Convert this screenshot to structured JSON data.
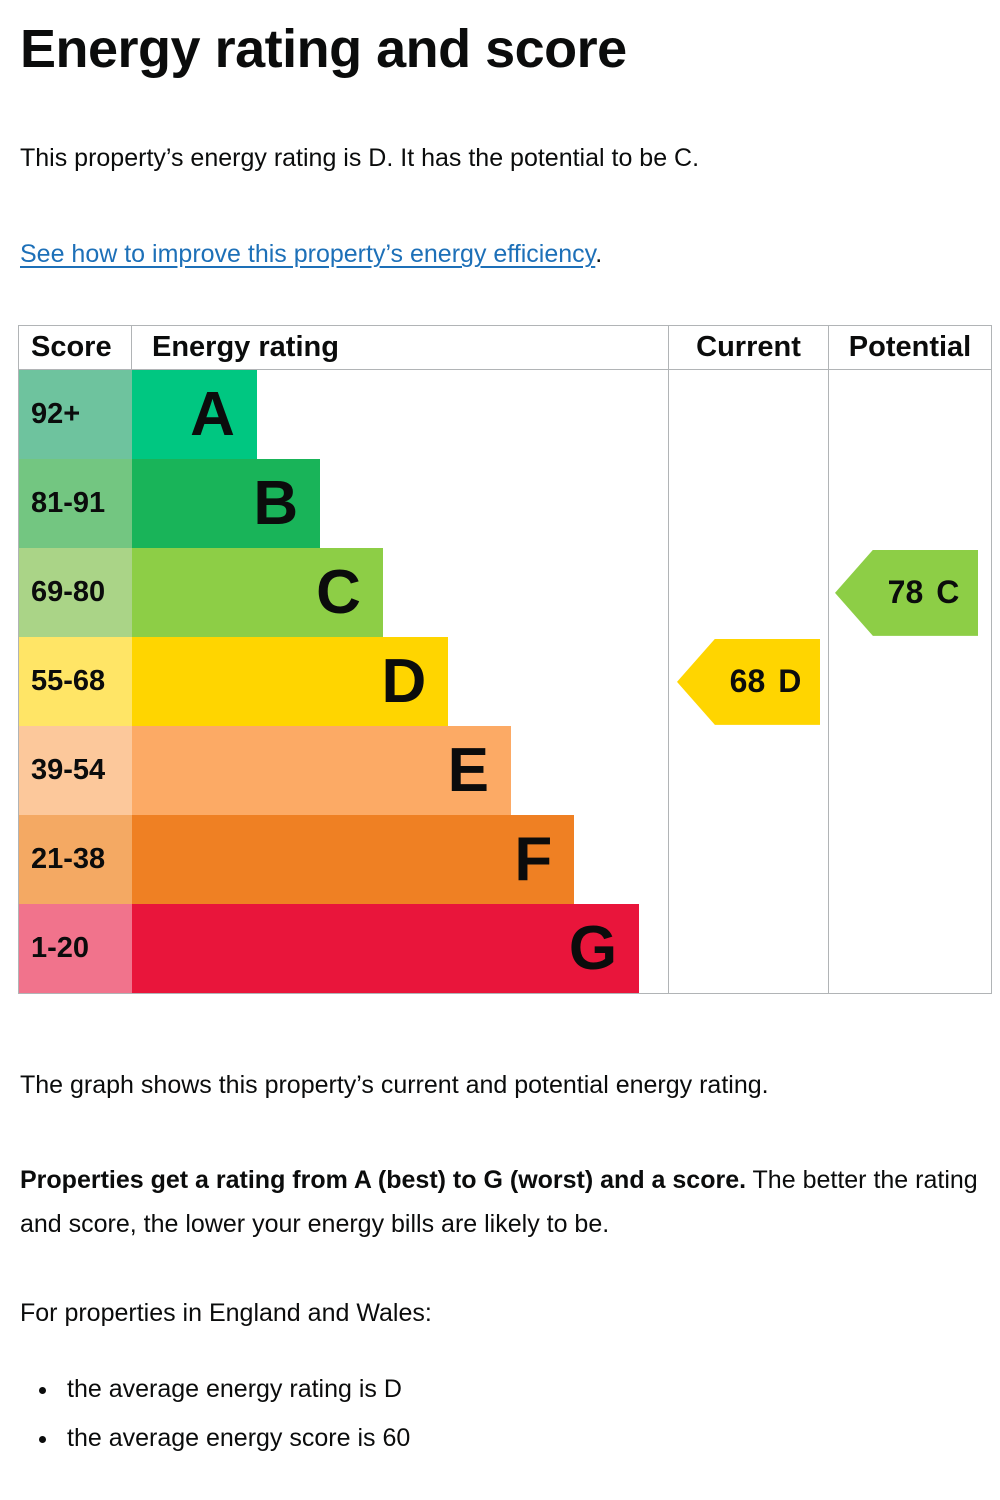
{
  "page": {
    "title": "Energy rating and score",
    "intro": "This property’s energy rating is D. It has the potential to be C.",
    "link_text": "See how to improve this property’s energy efficiency",
    "link_suffix": ".",
    "graph_caption": "The graph shows this property’s current and potential energy rating.",
    "rating_explain_bold": "Properties get a rating from A (best) to G (worst) and a score.",
    "rating_explain_rest": " The better the rating and score, the lower your energy bills are likely to be.",
    "region_note": "For properties in England and Wales:",
    "bullets": [
      "the average energy rating is D",
      "the average energy score is 60"
    ]
  },
  "colors": {
    "text": "#0b0c0c",
    "link": "#1d70b8",
    "table_border": "#b1b4b6"
  },
  "chart_data": {
    "type": "bar",
    "title": "Energy rating and score",
    "headers": [
      "Score",
      "Energy rating",
      "Current",
      "Potential"
    ],
    "legend_position": "none",
    "grid": false,
    "current": {
      "score": "68",
      "band": "D"
    },
    "potential": {
      "score": "78",
      "band": "C"
    },
    "bands": [
      {
        "band": "A",
        "score_range": "92+",
        "color": "#00c781",
        "tint": "#6ec39e",
        "width_pct": 23.3
      },
      {
        "band": "B",
        "score_range": "81-91",
        "color": "#19b459",
        "tint": "#73c681",
        "width_pct": 35.1
      },
      {
        "band": "C",
        "score_range": "69-80",
        "color": "#8dce46",
        "tint": "#aad487",
        "width_pct": 46.8
      },
      {
        "band": "D",
        "score_range": "55-68",
        "color": "#ffd500",
        "tint": "#ffe566",
        "width_pct": 59.0
      },
      {
        "band": "E",
        "score_range": "39-54",
        "color": "#fcaa65",
        "tint": "#fcc89b",
        "width_pct": 70.7
      },
      {
        "band": "F",
        "score_range": "21-38",
        "color": "#ef8023",
        "tint": "#f4a963",
        "width_pct": 82.5
      },
      {
        "band": "G",
        "score_range": "1-20",
        "color": "#e9153b",
        "tint": "#f1738c",
        "width_pct": 94.6
      }
    ]
  }
}
